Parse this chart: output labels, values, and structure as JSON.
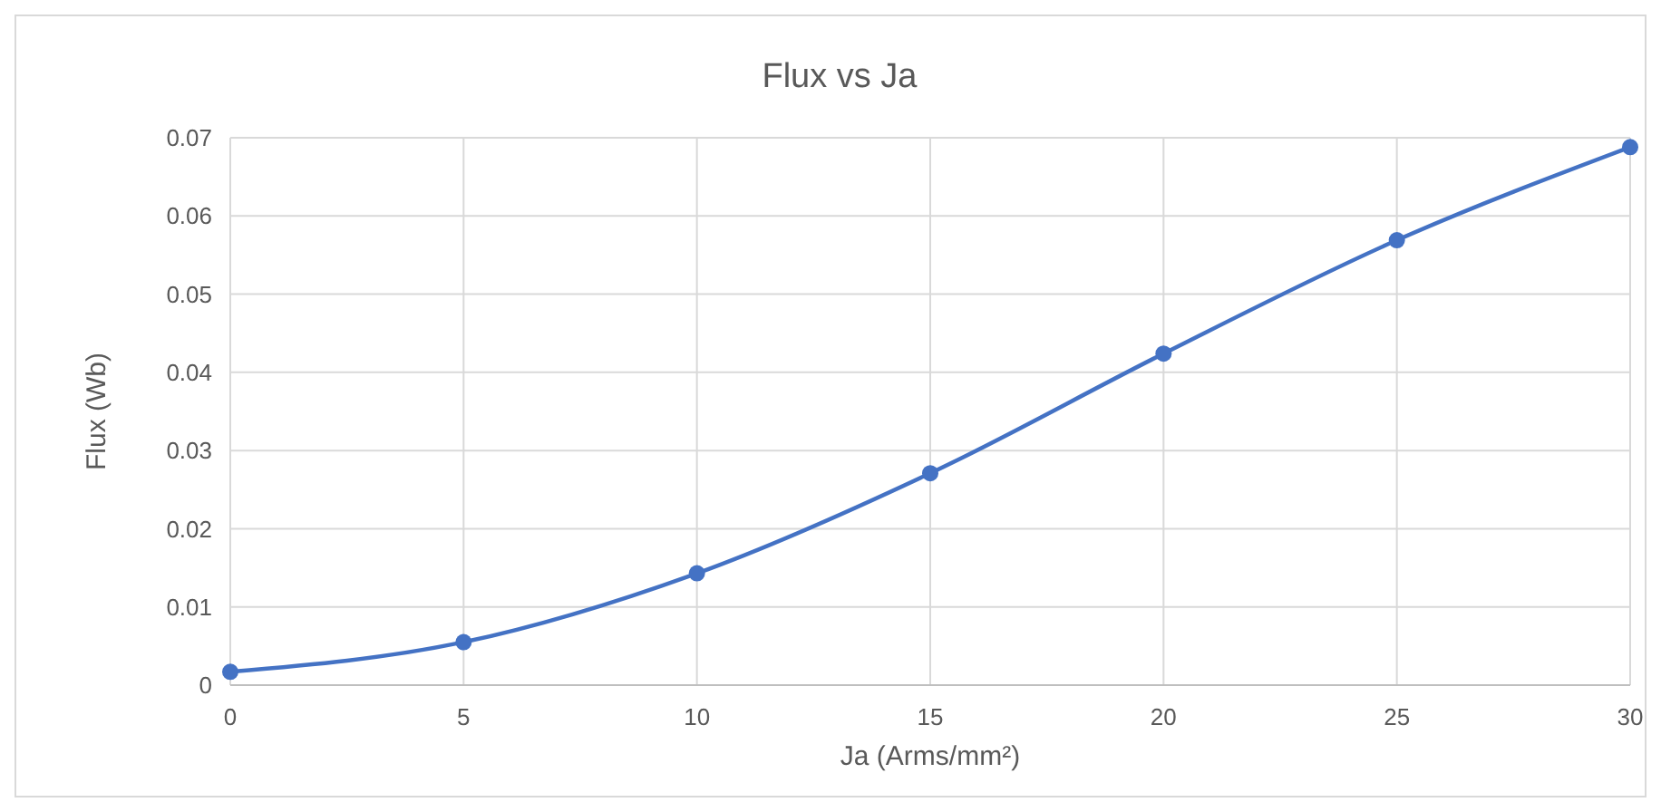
{
  "chart_data": {
    "type": "line",
    "title": "Flux vs Ja",
    "xlabel": "Ja (Arms/mm²)",
    "ylabel": "Flux (Wb)",
    "x": [
      0,
      5,
      10,
      15,
      20,
      25,
      30
    ],
    "series": [
      {
        "color": "#4472c4",
        "values": [
          0.0017,
          0.0055,
          0.0143,
          0.0271,
          0.0424,
          0.0569,
          0.0688
        ]
      }
    ],
    "xlim": [
      0,
      30
    ],
    "xticks": [
      0,
      5,
      10,
      15,
      20,
      25,
      30
    ],
    "ylim": [
      0,
      0.07
    ],
    "yticks": [
      0,
      0.01,
      0.02,
      0.03,
      0.04,
      0.05,
      0.06,
      0.07
    ],
    "grid": true,
    "marker": "circle",
    "line_style": "solid"
  }
}
